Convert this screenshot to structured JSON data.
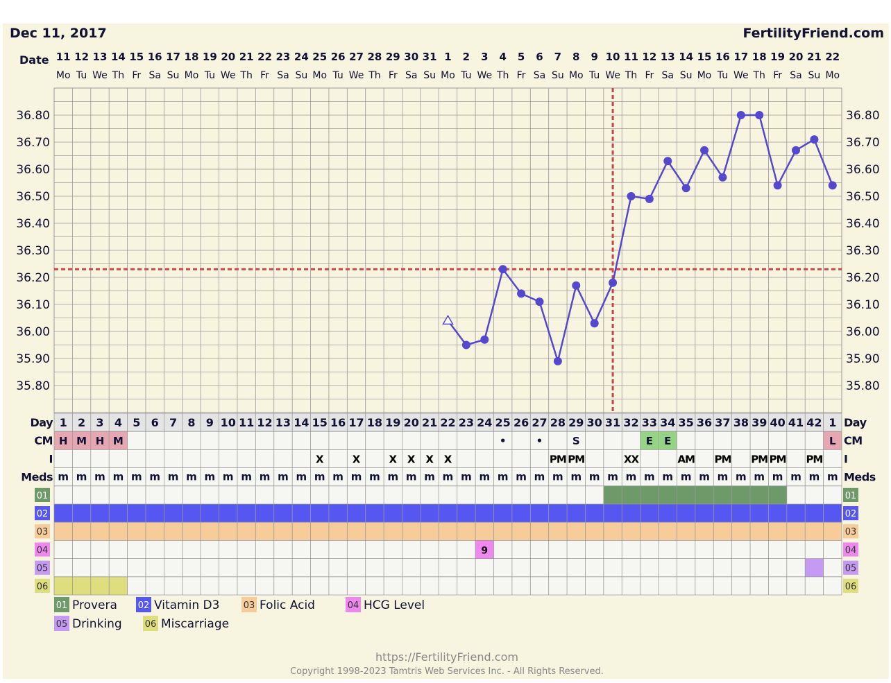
{
  "header": {
    "chart_date": "Dec 11, 2017",
    "site_name": "FertilityFriend.com",
    "date_label": "Date"
  },
  "footer": {
    "url": "https://FertilityFriend.com",
    "copyright": "Copyright 1998-2023 Tamtris Web Services Inc. - All Rights Reserved."
  },
  "colors": {
    "background": "#f7f4e0",
    "grid": "#9a9a9a",
    "line": "#5548cc",
    "coverline": "#cc4444",
    "text_dark": "#111133",
    "meds_01": "#6e9a6a",
    "meds_02": "#5656f0",
    "meds_03": "#f5cc9a",
    "meds_04": "#ee88ee",
    "meds_05": "#c49af2",
    "meds_06": "#dede7e",
    "cm_menstrual": "#e6a6b2",
    "cm_eggwhite": "#94d484"
  },
  "chart_data": {
    "type": "line",
    "title": "",
    "ylabel": "",
    "ylim": [
      35.8,
      36.8
    ],
    "ytick_labels": [
      "36.80",
      "36.70",
      "36.60",
      "36.50",
      "36.40",
      "36.30",
      "36.20",
      "36.10",
      "36.00",
      "35.90",
      "35.80"
    ],
    "grid": true,
    "dates": [
      "11",
      "12",
      "13",
      "14",
      "15",
      "16",
      "17",
      "18",
      "19",
      "20",
      "21",
      "22",
      "23",
      "24",
      "25",
      "26",
      "27",
      "28",
      "29",
      "30",
      "31",
      "1",
      "2",
      "3",
      "4",
      "5",
      "6",
      "7",
      "8",
      "9",
      "10",
      "11",
      "12",
      "13",
      "14",
      "15",
      "16",
      "17",
      "18",
      "19",
      "20",
      "21",
      "22"
    ],
    "weekdays": [
      "Mo",
      "Tu",
      "We",
      "Th",
      "Fr",
      "Sa",
      "Su",
      "Mo",
      "Tu",
      "We",
      "Th",
      "Fr",
      "Sa",
      "Su",
      "Mo",
      "Tu",
      "We",
      "Th",
      "Fr",
      "Sa",
      "Su",
      "Mo",
      "Tu",
      "We",
      "Th",
      "Fr",
      "Sa",
      "Su",
      "Mo",
      "Tu",
      "We",
      "Th",
      "Fr",
      "Sa",
      "Su",
      "Mo",
      "Tu",
      "We",
      "Th",
      "Fr",
      "Sa",
      "Su",
      "Mo"
    ],
    "cycle_days": [
      "1",
      "2",
      "3",
      "4",
      "5",
      "6",
      "7",
      "8",
      "9",
      "10",
      "11",
      "12",
      "13",
      "14",
      "15",
      "16",
      "17",
      "18",
      "19",
      "20",
      "21",
      "22",
      "23",
      "24",
      "25",
      "26",
      "27",
      "28",
      "29",
      "30",
      "31",
      "32",
      "33",
      "34",
      "35",
      "36",
      "37",
      "38",
      "39",
      "40",
      "41",
      "42",
      "1"
    ],
    "series": [
      {
        "values": [
          null,
          null,
          null,
          null,
          null,
          null,
          null,
          null,
          null,
          null,
          null,
          null,
          null,
          null,
          null,
          null,
          null,
          null,
          null,
          null,
          null,
          36.04,
          35.95,
          35.97,
          36.23,
          36.14,
          36.11,
          35.89,
          36.17,
          36.03,
          36.18,
          36.5,
          36.49,
          36.63,
          36.53,
          36.67,
          36.57,
          36.8,
          36.8,
          36.54,
          36.67,
          36.71,
          36.54
        ],
        "markers": [
          "",
          "",
          "",
          "",
          "",
          "",
          "",
          "",
          "",
          "",
          "",
          "",
          "",
          "",
          "",
          "",
          "",
          "",
          "",
          "",
          "",
          "triangle",
          "circle",
          "circle",
          "circle",
          "circle",
          "circle",
          "circle",
          "circle",
          "circle",
          "circle",
          "circle",
          "circle",
          "circle",
          "circle",
          "circle",
          "circle",
          "circle",
          "circle",
          "circle",
          "circle",
          "circle",
          "circle"
        ]
      }
    ],
    "coverline": 36.23,
    "ovulation_day_index": 30,
    "row_labels": {
      "day": "Day",
      "cm": "CM",
      "intercourse": "I",
      "meds": "Meds"
    },
    "cm_row": [
      "H",
      "M",
      "H",
      "M",
      "",
      "",
      "",
      "",
      "",
      "",
      "",
      "",
      "",
      "",
      "",
      "",
      "",
      "",
      "",
      "",
      "",
      "",
      "",
      "",
      "•",
      "",
      "•",
      "",
      "S",
      "",
      "",
      "",
      "E",
      "E",
      "",
      "",
      "",
      "",
      "",
      "",
      "",
      "",
      "L"
    ],
    "cm_highlight": [
      "menstrual",
      "menstrual",
      "menstrual",
      "menstrual",
      "",
      "",
      "",
      "",
      "",
      "",
      "",
      "",
      "",
      "",
      "",
      "",
      "",
      "",
      "",
      "",
      "",
      "",
      "",
      "",
      "",
      "",
      "",
      "",
      "",
      "",
      "",
      "",
      "eggwhite",
      "eggwhite",
      "",
      "",
      "",
      "",
      "",
      "",
      "",
      "",
      "menstrual"
    ],
    "intercourse_row": [
      "",
      "",
      "",
      "",
      "",
      "",
      "",
      "",
      "",
      "",
      "",
      "",
      "",
      "",
      "X",
      "",
      "X",
      "",
      "X",
      "X",
      "X",
      "X",
      "",
      "",
      "",
      "",
      "",
      "PM",
      "PM",
      "",
      "",
      "XX",
      "",
      "",
      "AM",
      "",
      "PM",
      "",
      "PM",
      "PM",
      "",
      "PM",
      ""
    ],
    "meds_row": [
      "m",
      "m",
      "m",
      "m",
      "m",
      "m",
      "m",
      "m",
      "m",
      "m",
      "m",
      "m",
      "m",
      "m",
      "m",
      "m",
      "m",
      "m",
      "m",
      "m",
      "m",
      "m",
      "m",
      "m",
      "m",
      "m",
      "m",
      "m",
      "m",
      "m",
      "m",
      "m",
      "m",
      "m",
      "m",
      "m",
      "m",
      "m",
      "m",
      "m",
      "m",
      "m",
      "m"
    ],
    "med_rows": [
      {
        "code": "01",
        "name": "Provera",
        "from": 30,
        "to": 39
      },
      {
        "code": "02",
        "name": "Vitamin D3",
        "from": 0,
        "to": 42
      },
      {
        "code": "03",
        "name": "Folic Acid",
        "from": 0,
        "to": 42
      },
      {
        "code": "04",
        "name": "HCG Level",
        "marks": [
          {
            "day": 23,
            "text": "9"
          }
        ]
      },
      {
        "code": "05",
        "name": "Drinking",
        "marks": [
          {
            "day": 41,
            "text": ""
          }
        ]
      },
      {
        "code": "06",
        "name": "Miscarriage",
        "from": 0,
        "to": 3
      }
    ]
  }
}
